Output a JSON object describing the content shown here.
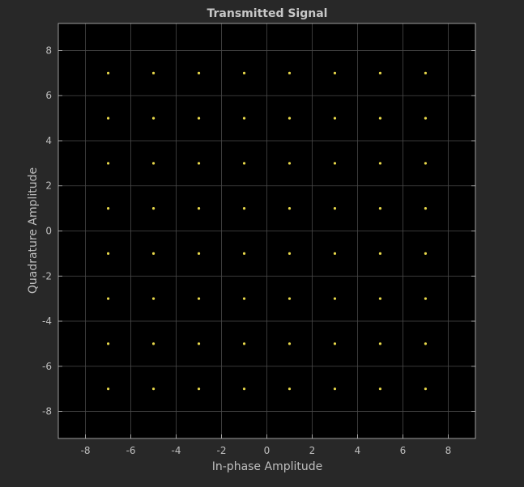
{
  "colors": {
    "figure_background": "#282828",
    "axes_background": "#000000",
    "axes_border": "#bfbfbf",
    "grid": "#4a4a4a",
    "text": "#bfbfbf",
    "title_text": "#c8c8c8",
    "marker": "#e8d84a"
  },
  "chart_data": {
    "type": "scatter",
    "title": "Transmitted Signal",
    "xlabel": "In-phase Amplitude",
    "ylabel": "Quadrature Amplitude",
    "xlim": [
      -9.2,
      9.2
    ],
    "ylim": [
      -9.2,
      9.2
    ],
    "xticks": [
      -8,
      -6,
      -4,
      -2,
      0,
      2,
      4,
      6,
      8
    ],
    "yticks": [
      -8,
      -6,
      -4,
      -2,
      0,
      2,
      4,
      6,
      8
    ],
    "xtick_labels": [
      "-8",
      "-6",
      "-4",
      "-2",
      "0",
      "2",
      "4",
      "6",
      "8"
    ],
    "ytick_labels": [
      "-8",
      "-6",
      "-4",
      "-2",
      "0",
      "2",
      "4",
      "6",
      "8"
    ],
    "grid": true,
    "marker": "point",
    "series": [
      {
        "points": [
          [
            -7,
            7
          ],
          [
            -5,
            7
          ],
          [
            -3,
            7
          ],
          [
            -1,
            7
          ],
          [
            1,
            7
          ],
          [
            3,
            7
          ],
          [
            5,
            7
          ],
          [
            7,
            7
          ],
          [
            -7,
            5
          ],
          [
            -5,
            5
          ],
          [
            -3,
            5
          ],
          [
            -1,
            5
          ],
          [
            1,
            5
          ],
          [
            3,
            5
          ],
          [
            5,
            5
          ],
          [
            7,
            5
          ],
          [
            -7,
            3
          ],
          [
            -5,
            3
          ],
          [
            -3,
            3
          ],
          [
            -1,
            3
          ],
          [
            1,
            3
          ],
          [
            3,
            3
          ],
          [
            5,
            3
          ],
          [
            7,
            3
          ],
          [
            -7,
            1
          ],
          [
            -5,
            1
          ],
          [
            -3,
            1
          ],
          [
            -1,
            1
          ],
          [
            1,
            1
          ],
          [
            3,
            1
          ],
          [
            5,
            1
          ],
          [
            7,
            1
          ],
          [
            -7,
            -1
          ],
          [
            -5,
            -1
          ],
          [
            -3,
            -1
          ],
          [
            -1,
            -1
          ],
          [
            1,
            -1
          ],
          [
            3,
            -1
          ],
          [
            5,
            -1
          ],
          [
            7,
            -1
          ],
          [
            -7,
            -3
          ],
          [
            -5,
            -3
          ],
          [
            -3,
            -3
          ],
          [
            -1,
            -3
          ],
          [
            1,
            -3
          ],
          [
            3,
            -3
          ],
          [
            5,
            -3
          ],
          [
            7,
            -3
          ],
          [
            -7,
            -5
          ],
          [
            -5,
            -5
          ],
          [
            -3,
            -5
          ],
          [
            -1,
            -5
          ],
          [
            1,
            -5
          ],
          [
            3,
            -5
          ],
          [
            5,
            -5
          ],
          [
            7,
            -5
          ],
          [
            -7,
            -7
          ],
          [
            -5,
            -7
          ],
          [
            -3,
            -7
          ],
          [
            -1,
            -7
          ],
          [
            1,
            -7
          ],
          [
            3,
            -7
          ],
          [
            5,
            -7
          ],
          [
            7,
            -7
          ]
        ]
      }
    ]
  }
}
